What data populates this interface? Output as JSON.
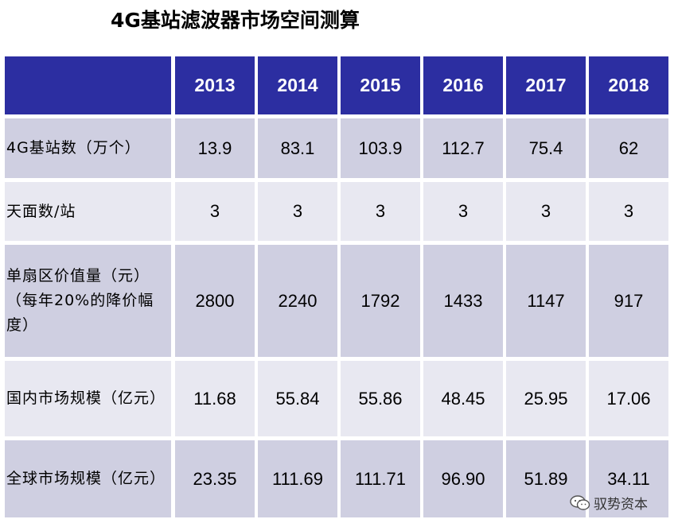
{
  "title": "4G基站滤波器市场空间测算",
  "table": {
    "corner": "",
    "years": [
      "2013",
      "2014",
      "2015",
      "2016",
      "2017",
      "2018"
    ],
    "rows": [
      {
        "label": "4G基站数（万个）",
        "values": [
          "13.9",
          "83.1",
          "103.9",
          "112.7",
          "75.4",
          "62"
        ]
      },
      {
        "label": "天面数/站",
        "values": [
          "3",
          "3",
          "3",
          "3",
          "3",
          "3"
        ]
      },
      {
        "label": "单扇区价值量（元）（每年20%的降价幅度）",
        "values": [
          "2800",
          "2240",
          "1792",
          "1433",
          "1147",
          "917"
        ]
      },
      {
        "label": "国内市场规模（亿元）",
        "values": [
          "11.68",
          "55.84",
          "55.86",
          "48.45",
          "25.95",
          "17.06"
        ]
      },
      {
        "label": "全球市场规模（亿元）",
        "values": [
          "23.35",
          "111.69",
          "111.71",
          "96.90",
          "51.89",
          "34.11"
        ]
      }
    ]
  },
  "watermark": {
    "icon": "wechat-icon",
    "text": "驭势资本"
  },
  "colors": {
    "header": "#2c2ea1",
    "row_dark": "#cfcfe1",
    "row_light": "#e8e8f1"
  }
}
